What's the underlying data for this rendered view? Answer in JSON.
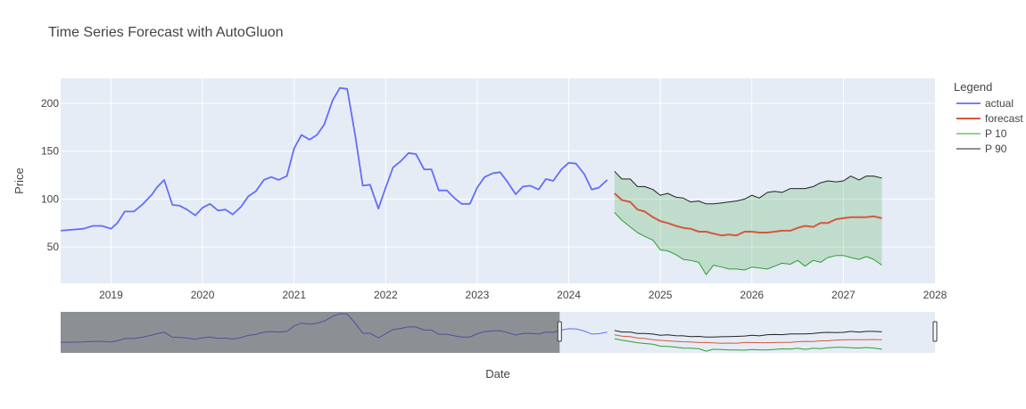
{
  "chart_data": {
    "type": "line",
    "title": "Time Series Forecast with AutoGluon",
    "xlabel": "Date",
    "ylabel": "Price",
    "xlim": [
      2018.45,
      2028.0
    ],
    "ylim": [
      12,
      226
    ],
    "xticks": [
      2019,
      2020,
      2021,
      2022,
      2023,
      2024,
      2025,
      2026,
      2027,
      2028
    ],
    "xtick_labels": [
      "2019",
      "2020",
      "2021",
      "2022",
      "2023",
      "2024",
      "2025",
      "2026",
      "2027",
      "2028"
    ],
    "yticks": [
      50,
      100,
      150,
      200
    ],
    "ytick_labels": [
      "50",
      "100",
      "150",
      "200"
    ],
    "grid": true,
    "legend": {
      "title": "Legend",
      "placement": "right",
      "items": [
        "actual",
        "forecast",
        "P 10",
        "P 90"
      ]
    },
    "series": [
      {
        "name": "actual",
        "color": "#636efa",
        "x": [
          2018.45,
          2018.7,
          2018.8,
          2018.9,
          2019.0,
          2019.07,
          2019.15,
          2019.25,
          2019.35,
          2019.45,
          2019.5,
          2019.58,
          2019.67,
          2019.75,
          2019.83,
          2019.92,
          2020.0,
          2020.08,
          2020.17,
          2020.25,
          2020.33,
          2020.42,
          2020.5,
          2020.58,
          2020.67,
          2020.75,
          2020.83,
          2020.92,
          2021.0,
          2021.08,
          2021.17,
          2021.25,
          2021.33,
          2021.42,
          2021.5,
          2021.58,
          2021.67,
          2021.75,
          2021.83,
          2021.92,
          2022.0,
          2022.08,
          2022.17,
          2022.25,
          2022.33,
          2022.42,
          2022.5,
          2022.58,
          2022.67,
          2022.75,
          2022.83,
          2022.92,
          2023.0,
          2023.08,
          2023.17,
          2023.25,
          2023.33,
          2023.42,
          2023.5,
          2023.58,
          2023.67,
          2023.75,
          2023.83,
          2023.92,
          2024.0,
          2024.08,
          2024.17,
          2024.25,
          2024.33,
          2024.42
        ],
        "y": [
          67,
          69,
          72,
          72,
          69,
          75,
          87,
          87,
          95,
          105,
          112,
          120,
          94,
          93,
          89,
          83,
          91,
          95,
          88,
          89,
          84,
          92,
          103,
          108,
          120,
          123,
          120,
          124,
          153,
          167,
          162,
          167,
          178,
          203,
          216,
          215,
          165,
          114,
          115,
          90,
          112,
          133,
          140,
          148,
          147,
          131,
          131,
          109,
          109,
          101,
          95,
          95,
          112,
          123,
          127,
          128,
          118,
          105,
          113,
          114,
          110,
          121,
          119,
          131,
          138,
          137,
          126,
          110,
          112,
          120
        ]
      },
      {
        "name": "forecast",
        "color": "#d8573c",
        "x": [
          2024.5,
          2024.58,
          2024.67,
          2024.75,
          2024.83,
          2024.92,
          2025.0,
          2025.08,
          2025.17,
          2025.25,
          2025.33,
          2025.42,
          2025.5,
          2025.58,
          2025.67,
          2025.75,
          2025.83,
          2025.92,
          2026.0,
          2026.08,
          2026.17,
          2026.25,
          2026.33,
          2026.42,
          2026.5,
          2026.58,
          2026.67,
          2026.75,
          2026.83,
          2026.92,
          2027.0,
          2027.08,
          2027.17,
          2027.25,
          2027.33,
          2027.42
        ],
        "y": [
          106,
          99,
          97,
          89,
          87,
          81,
          77,
          75,
          72,
          70,
          69,
          66,
          66,
          64,
          62,
          63,
          62,
          66,
          66,
          65,
          65,
          66,
          67,
          67,
          70,
          72,
          71,
          75,
          75,
          79,
          80,
          81,
          81,
          81,
          82,
          80
        ]
      },
      {
        "name": "P 10",
        "color": "#2ca02c",
        "x": [
          2024.5,
          2024.58,
          2024.67,
          2024.75,
          2024.83,
          2024.92,
          2025.0,
          2025.08,
          2025.17,
          2025.25,
          2025.33,
          2025.42,
          2025.5,
          2025.58,
          2025.67,
          2025.75,
          2025.83,
          2025.92,
          2026.0,
          2026.08,
          2026.17,
          2026.25,
          2026.33,
          2026.42,
          2026.5,
          2026.58,
          2026.67,
          2026.75,
          2026.83,
          2026.92,
          2027.0,
          2027.08,
          2027.17,
          2027.25,
          2027.33,
          2027.42
        ],
        "y": [
          86,
          78,
          71,
          65,
          61,
          57,
          47,
          46,
          42,
          37,
          36,
          34,
          21,
          31,
          29,
          27,
          27,
          26,
          29,
          28,
          27,
          30,
          33,
          32,
          36,
          30,
          36,
          34,
          39,
          41,
          41,
          39,
          37,
          40,
          37,
          31
        ]
      },
      {
        "name": "P 90",
        "color": "#222222",
        "x": [
          2024.5,
          2024.58,
          2024.67,
          2024.75,
          2024.83,
          2024.92,
          2025.0,
          2025.08,
          2025.17,
          2025.25,
          2025.33,
          2025.42,
          2025.5,
          2025.58,
          2025.67,
          2025.75,
          2025.83,
          2025.92,
          2026.0,
          2026.08,
          2026.17,
          2026.25,
          2026.33,
          2026.42,
          2026.5,
          2026.58,
          2026.67,
          2026.75,
          2026.83,
          2026.92,
          2027.0,
          2027.08,
          2027.17,
          2027.25,
          2027.33,
          2027.42
        ],
        "y": [
          129,
          121,
          121,
          113,
          113,
          110,
          104,
          106,
          102,
          101,
          97,
          98,
          95,
          95,
          96,
          97,
          98,
          100,
          104,
          101,
          107,
          108,
          107,
          111,
          111,
          111,
          113,
          117,
          119,
          118,
          119,
          124,
          120,
          124,
          124,
          122
        ]
      }
    ],
    "band": {
      "between": [
        "P 10",
        "P 90"
      ],
      "color": "#2ca02c"
    },
    "range_slider": {
      "selected": [
        2023.9,
        2028.0
      ],
      "full": [
        2018.45,
        2028.0
      ]
    }
  }
}
